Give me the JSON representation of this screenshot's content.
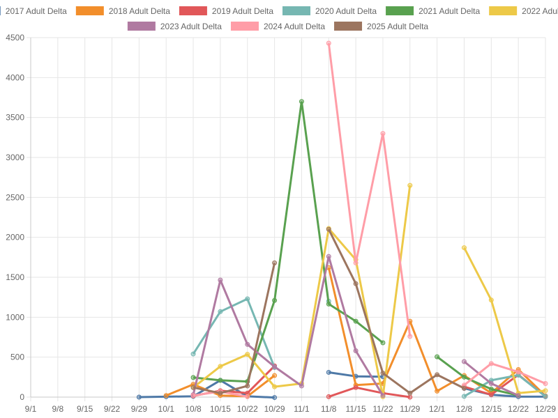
{
  "chart_data": {
    "type": "line",
    "title": "",
    "xlabel": "",
    "ylabel": "",
    "x_ticks": [
      "9/1",
      "9/8",
      "9/15",
      "9/22",
      "9/29",
      "10/1",
      "10/8",
      "10/15",
      "10/22",
      "10/29",
      "11/1",
      "11/8",
      "11/15",
      "11/22",
      "11/29",
      "12/1",
      "12/8",
      "12/15",
      "12/22",
      "12/29"
    ],
    "ylim": [
      0,
      4500
    ],
    "y_ticks": [
      0,
      500,
      1000,
      1500,
      2000,
      2500,
      3000,
      3500,
      4000,
      4500
    ],
    "grid": true,
    "legend_position": "top",
    "series": [
      {
        "name": "2017 Adult Delta",
        "color": "#4e79a7",
        "points": [
          [
            4,
            0
          ],
          [
            5,
            5
          ],
          [
            6,
            10
          ],
          [
            7,
            210
          ],
          [
            8,
            10
          ],
          [
            9,
            -5
          ],
          [
            11,
            310
          ],
          [
            12,
            260
          ],
          [
            13,
            255
          ],
          [
            16,
            110
          ],
          [
            17,
            30
          ],
          [
            18,
            5
          ],
          [
            19,
            5
          ]
        ]
      },
      {
        "name": "2018 Adult Delta",
        "color": "#f28e2b",
        "points": [
          [
            5,
            20
          ],
          [
            6,
            160
          ],
          [
            7,
            20
          ],
          [
            8,
            10
          ],
          [
            9,
            270
          ],
          [
            11,
            1620
          ],
          [
            12,
            150
          ],
          [
            13,
            170
          ],
          [
            14,
            950
          ],
          [
            15,
            75
          ],
          [
            16,
            270
          ],
          [
            17,
            50
          ],
          [
            18,
            345
          ],
          [
            19,
            15
          ]
        ]
      },
      {
        "name": "2019 Adult Delta",
        "color": "#e15759",
        "points": [
          [
            6,
            15
          ],
          [
            7,
            80
          ],
          [
            8,
            50
          ],
          [
            9,
            390
          ],
          [
            11,
            5
          ],
          [
            12,
            120
          ],
          [
            13,
            50
          ],
          [
            14,
            0
          ],
          [
            16,
            130
          ],
          [
            17,
            30
          ],
          [
            18,
            280
          ],
          [
            19,
            10
          ]
        ]
      },
      {
        "name": "2020 Adult Delta",
        "color": "#76b7b2",
        "points": [
          [
            6,
            540
          ],
          [
            7,
            1070
          ],
          [
            8,
            1230
          ],
          [
            9,
            370
          ],
          [
            11,
            1200
          ],
          [
            16,
            10
          ],
          [
            17,
            210
          ],
          [
            18,
            275
          ],
          [
            19,
            10
          ]
        ]
      },
      {
        "name": "2021 Adult Delta",
        "color": "#59a14f",
        "points": [
          [
            6,
            245
          ],
          [
            7,
            210
          ],
          [
            8,
            195
          ],
          [
            9,
            1210
          ],
          [
            10,
            3700
          ],
          [
            11,
            1165
          ],
          [
            12,
            950
          ],
          [
            13,
            680
          ],
          [
            15,
            505
          ],
          [
            16,
            250
          ],
          [
            17,
            100
          ],
          [
            18,
            20
          ]
        ]
      },
      {
        "name": "2022 Adult Delta",
        "color": "#edc948",
        "points": [
          [
            6,
            120
          ],
          [
            7,
            385
          ],
          [
            8,
            535
          ],
          [
            9,
            130
          ],
          [
            10,
            170
          ],
          [
            11,
            2110
          ],
          [
            12,
            1720
          ],
          [
            13,
            5
          ],
          [
            14,
            2650
          ],
          [
            16,
            1870
          ],
          [
            17,
            1215
          ],
          [
            18,
            50
          ],
          [
            19,
            80
          ]
        ]
      },
      {
        "name": "2023 Adult Delta",
        "color": "#b07aa1",
        "points": [
          [
            6,
            30
          ],
          [
            7,
            1465
          ],
          [
            8,
            660
          ],
          [
            9,
            380
          ],
          [
            10,
            140
          ],
          [
            11,
            1760
          ],
          [
            12,
            580
          ],
          [
            13,
            20
          ],
          [
            16,
            445
          ],
          [
            17,
            170
          ],
          [
            18,
            20
          ]
        ]
      },
      {
        "name": "2024 Adult Delta",
        "color": "#ff9da7",
        "points": [
          [
            6,
            20
          ],
          [
            7,
            70
          ],
          [
            8,
            5
          ],
          [
            11,
            4430
          ],
          [
            12,
            1680
          ],
          [
            13,
            3300
          ],
          [
            14,
            760
          ],
          [
            16,
            150
          ],
          [
            17,
            420
          ],
          [
            18,
            315
          ],
          [
            19,
            170
          ]
        ]
      },
      {
        "name": "2025 Adult Delta",
        "color": "#9c755f",
        "points": [
          [
            6,
            120
          ],
          [
            7,
            50
          ],
          [
            8,
            140
          ],
          [
            9,
            1680
          ],
          [
            11,
            2100
          ],
          [
            12,
            1420
          ],
          [
            13,
            300
          ],
          [
            14,
            50
          ],
          [
            15,
            280
          ],
          [
            16,
            110
          ]
        ]
      }
    ]
  }
}
